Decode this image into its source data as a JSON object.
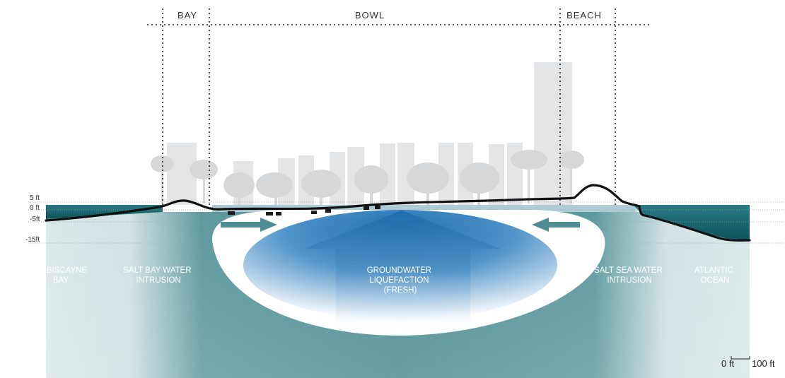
{
  "zones": {
    "bay": "BAY",
    "bowl": "BOWL",
    "beach": "BEACH"
  },
  "depths": {
    "plus5": "5 ft",
    "zero": "0 ft",
    "minus5": "-5ft",
    "minus15": "-15ft"
  },
  "labels": {
    "biscayne": [
      "BISCAYNE",
      "BAY"
    ],
    "salt_bay": [
      "SALT BAY WATER",
      "INTRUSION"
    ],
    "groundwater": [
      "GROUNDWATER",
      "LIQUEFACTION",
      "(FRESH)"
    ],
    "salt_sea": [
      "SALT SEA WATER",
      "INTRUSION"
    ],
    "atlantic": [
      "ATLANTIC",
      "OCEAN"
    ]
  },
  "scale": {
    "start": "0 ft",
    "end": "100 ft"
  },
  "colors": {
    "sea_water": "#0f5a63",
    "deep_water": "#4f8e94",
    "fresh_water": "#2f79b8",
    "buildings": "#e2e3e5",
    "trees": "#d8d9db",
    "ground_line": "#111111"
  }
}
